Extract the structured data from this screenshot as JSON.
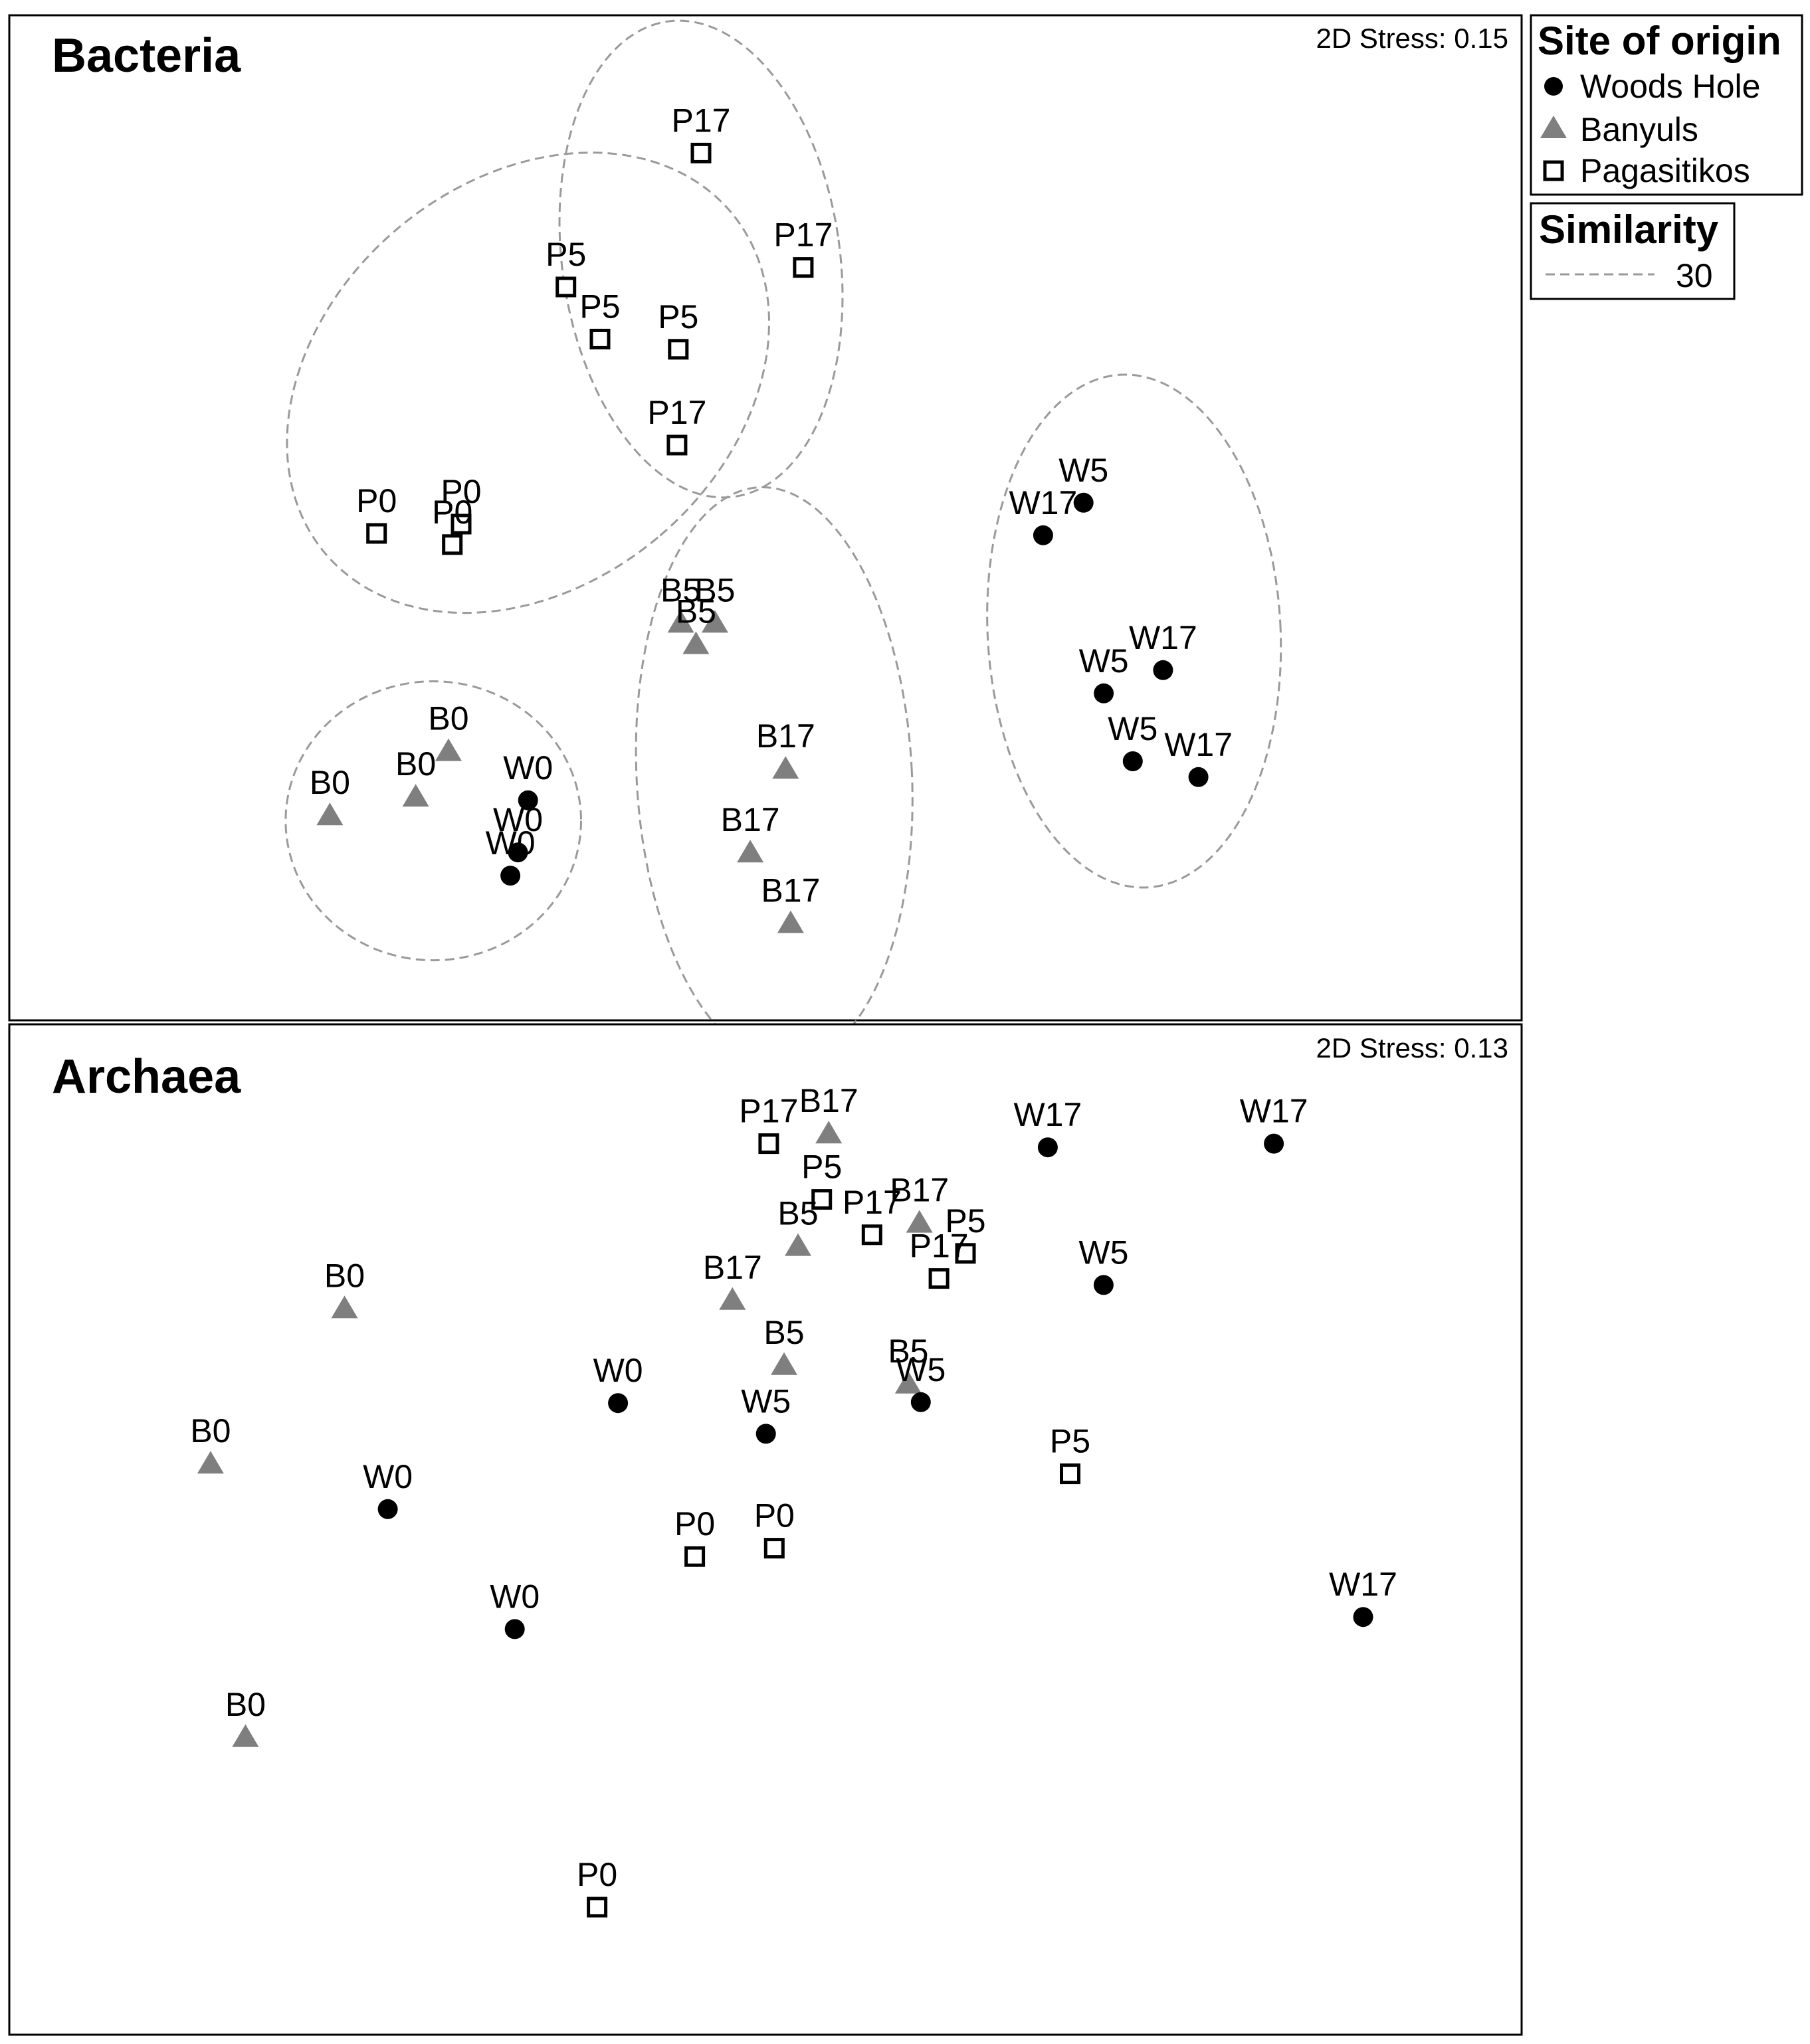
{
  "chart_data": [
    {
      "type": "scatter",
      "title": "Bacteria",
      "stress_label": "2D Stress: 0.15",
      "xlim": [
        0,
        1000
      ],
      "ylim": [
        0,
        1000
      ],
      "points": [
        {
          "label": "P17",
          "group": "Pagasitikos",
          "x": 450,
          "y": 914
        },
        {
          "label": "P17",
          "group": "Pagasitikos",
          "x": 531,
          "y": 791
        },
        {
          "label": "P5",
          "group": "Pagasitikos",
          "x": 343,
          "y": 770
        },
        {
          "label": "P5",
          "group": "Pagasitikos",
          "x": 370,
          "y": 714
        },
        {
          "label": "P5",
          "group": "Pagasitikos",
          "x": 432,
          "y": 703
        },
        {
          "label": "P17",
          "group": "Pagasitikos",
          "x": 431,
          "y": 600
        },
        {
          "label": "P0",
          "group": "Pagasitikos",
          "x": 193,
          "y": 505
        },
        {
          "label": "P0",
          "group": "Pagasitikos",
          "x": 260,
          "y": 515
        },
        {
          "label": "P0",
          "group": "Pagasitikos",
          "x": 253,
          "y": 493
        },
        {
          "label": "W5",
          "group": "Woods Hole",
          "x": 753,
          "y": 538
        },
        {
          "label": "W17",
          "group": "Woods Hole",
          "x": 721,
          "y": 503
        },
        {
          "label": "W17",
          "group": "Woods Hole",
          "x": 816,
          "y": 358
        },
        {
          "label": "W5",
          "group": "Woods Hole",
          "x": 769,
          "y": 333
        },
        {
          "label": "W5",
          "group": "Woods Hole",
          "x": 792,
          "y": 260
        },
        {
          "label": "W17",
          "group": "Woods Hole",
          "x": 844,
          "y": 243
        },
        {
          "label": "B5",
          "group": "Banyuls",
          "x": 434,
          "y": 409
        },
        {
          "label": "B5",
          "group": "Banyuls",
          "x": 461,
          "y": 409
        },
        {
          "label": "B5",
          "group": "Banyuls",
          "x": 446,
          "y": 386
        },
        {
          "label": "B17",
          "group": "Banyuls",
          "x": 517,
          "y": 252
        },
        {
          "label": "B17",
          "group": "Banyuls",
          "x": 489,
          "y": 162
        },
        {
          "label": "B17",
          "group": "Banyuls",
          "x": 521,
          "y": 86
        },
        {
          "label": "B0",
          "group": "Banyuls",
          "x": 250,
          "y": 271
        },
        {
          "label": "B0",
          "group": "Banyuls",
          "x": 224,
          "y": 222
        },
        {
          "label": "B0",
          "group": "Banyuls",
          "x": 156,
          "y": 202
        },
        {
          "label": "W0",
          "group": "Woods Hole",
          "x": 313,
          "y": 218
        },
        {
          "label": "W0",
          "group": "Woods Hole",
          "x": 305,
          "y": 162
        },
        {
          "label": "W0",
          "group": "Woods Hole",
          "x": 299,
          "y": 137
        }
      ],
      "similarity_ellipses": [
        {
          "cx": 450,
          "cy": 800,
          "rx": 110,
          "ry": 258,
          "rotation": -8
        },
        {
          "cx": 313,
          "cy": 667,
          "rx": 160,
          "ry": 285,
          "rotation": 50
        },
        {
          "cx": 238,
          "cy": 196,
          "rx": 117,
          "ry": 150,
          "rotation": 0
        },
        {
          "cx": 508,
          "cy": 245,
          "rx": 109,
          "ry": 310,
          "rotation": -3
        },
        {
          "cx": 793,
          "cy": 400,
          "rx": 116,
          "ry": 276,
          "rotation": -3
        }
      ]
    },
    {
      "type": "scatter",
      "title": "Archaea",
      "stress_label": "2D Stress: 0.13",
      "xlim": [
        0,
        1000
      ],
      "ylim": [
        0,
        1000
      ],
      "points": [
        {
          "label": "P17",
          "group": "Pagasitikos",
          "x": 489,
          "y": 906
        },
        {
          "label": "B17",
          "group": "Banyuls",
          "x": 532,
          "y": 917
        },
        {
          "label": "P5",
          "group": "Pagasitikos",
          "x": 527,
          "y": 846
        },
        {
          "label": "P17",
          "group": "Pagasitikos",
          "x": 563,
          "y": 808
        },
        {
          "label": "B17",
          "group": "Banyuls",
          "x": 597,
          "y": 821
        },
        {
          "label": "P5",
          "group": "Pagasitikos",
          "x": 630,
          "y": 788
        },
        {
          "label": "P17",
          "group": "Pagasitikos",
          "x": 611,
          "y": 761
        },
        {
          "label": "B5",
          "group": "Banyuls",
          "x": 510,
          "y": 796
        },
        {
          "label": "B17",
          "group": "Banyuls",
          "x": 463,
          "y": 738
        },
        {
          "label": "B5",
          "group": "Banyuls",
          "x": 500,
          "y": 668
        },
        {
          "label": "B5",
          "group": "Banyuls",
          "x": 589,
          "y": 648
        },
        {
          "label": "W5",
          "group": "Woods Hole",
          "x": 598,
          "y": 628
        },
        {
          "label": "W5",
          "group": "Woods Hole",
          "x": 487,
          "y": 594
        },
        {
          "label": "W0",
          "group": "Woods Hole",
          "x": 381,
          "y": 627
        },
        {
          "label": "W17",
          "group": "Woods Hole",
          "x": 689,
          "y": 902
        },
        {
          "label": "W17",
          "group": "Woods Hole",
          "x": 851,
          "y": 906
        },
        {
          "label": "W5",
          "group": "Woods Hole",
          "x": 729,
          "y": 754
        },
        {
          "label": "P5",
          "group": "Pagasitikos",
          "x": 705,
          "y": 551
        },
        {
          "label": "W17",
          "group": "Woods Hole",
          "x": 915,
          "y": 397
        },
        {
          "label": "B0",
          "group": "Banyuls",
          "x": 185,
          "y": 729
        },
        {
          "label": "B0",
          "group": "Banyuls",
          "x": 89,
          "y": 562
        },
        {
          "label": "W0",
          "group": "Woods Hole",
          "x": 216,
          "y": 513
        },
        {
          "label": "W0",
          "group": "Woods Hole",
          "x": 307,
          "y": 384
        },
        {
          "label": "P0",
          "group": "Pagasitikos",
          "x": 436,
          "y": 462
        },
        {
          "label": "P0",
          "group": "Pagasitikos",
          "x": 493,
          "y": 471
        },
        {
          "label": "B0",
          "group": "Banyuls",
          "x": 114,
          "y": 268
        },
        {
          "label": "P0",
          "group": "Pagasitikos",
          "x": 366,
          "y": 85
        }
      ]
    }
  ],
  "legend": {
    "site_title": "Site of origin",
    "entries": [
      {
        "name": "Woods Hole",
        "marker": "filled-circle",
        "color": "#000000"
      },
      {
        "name": "Banyuls",
        "marker": "filled-triangle",
        "color": "#7f7f7f"
      },
      {
        "name": "Pagasitikos",
        "marker": "open-square",
        "color": "#000000"
      }
    ],
    "similarity_title": "Similarity",
    "similarity_value": "30",
    "similarity_line_color": "#9a9a9a"
  }
}
